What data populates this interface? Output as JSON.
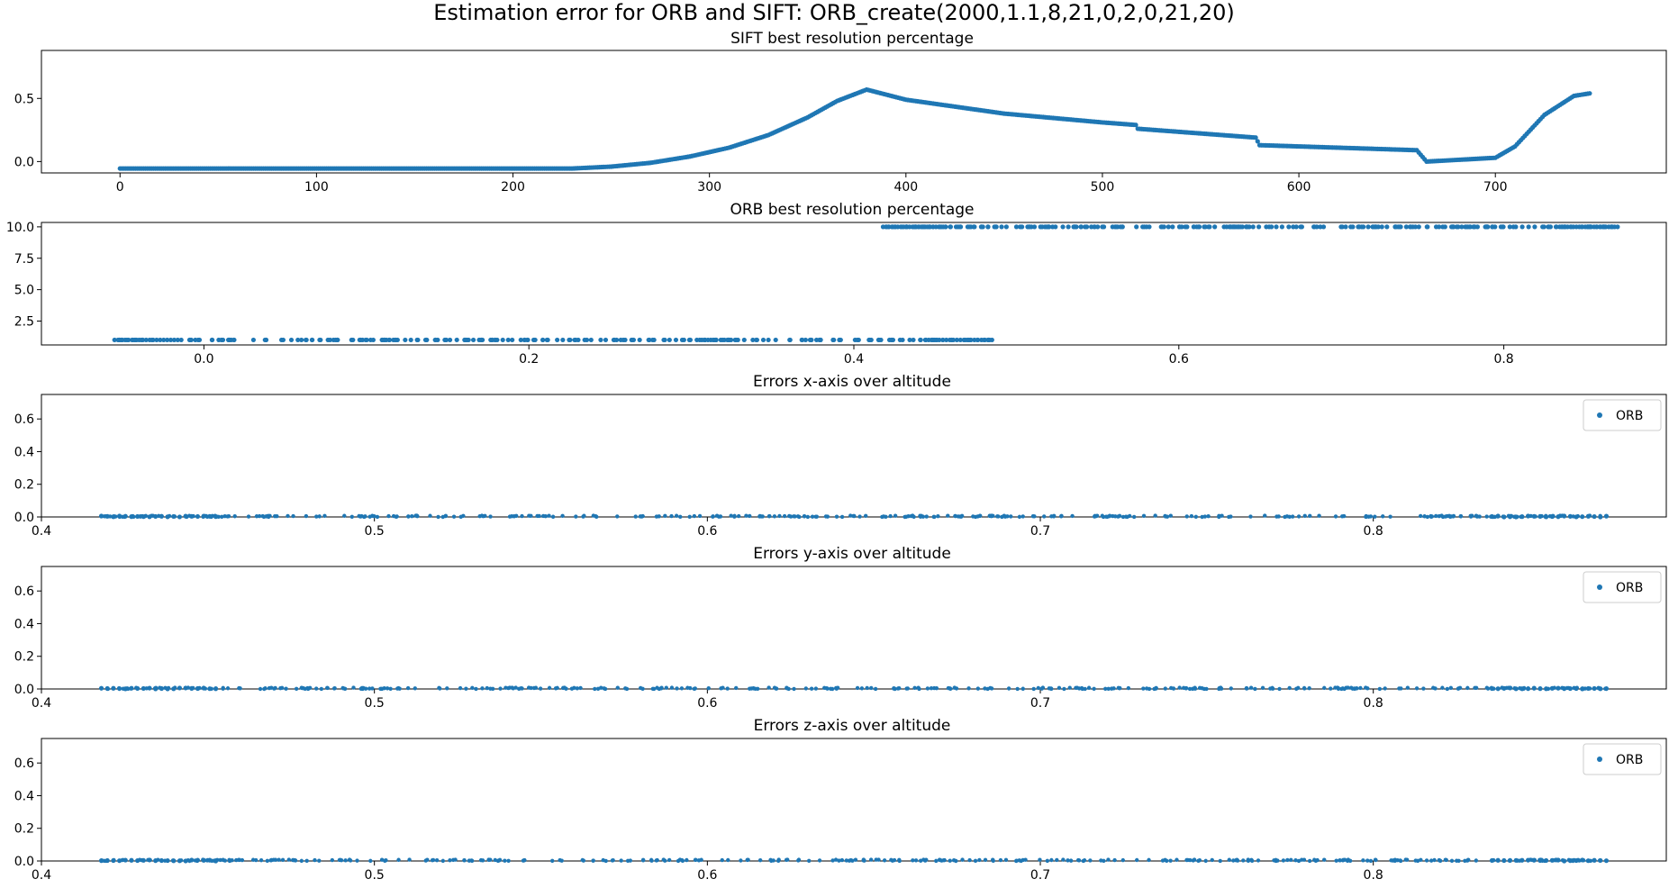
{
  "figure": {
    "title": "Estimation error for ORB and SIFT: ORB_create(2000,1.1,8,21,0,2,0,21,20)"
  },
  "colors": {
    "series": "#1f77b4",
    "axes": "#000000",
    "background": "#ffffff"
  },
  "chart_data": [
    {
      "type": "scatter",
      "title": "SIFT best resolution percentage",
      "xlim": [
        -40,
        787
      ],
      "ylim": [
        -0.09,
        0.88
      ],
      "xticks": [
        0,
        100,
        200,
        300,
        400,
        500,
        600,
        700
      ],
      "yticks": [
        0.0,
        0.5
      ],
      "ytick_labels": [
        "0.0",
        "0.5"
      ],
      "grid": false,
      "series": [
        {
          "curve": [
            [
              0,
              -0.055
            ],
            [
              230,
              -0.055
            ],
            [
              250,
              -0.04
            ],
            [
              270,
              -0.01
            ],
            [
              290,
              0.04
            ],
            [
              310,
              0.11
            ],
            [
              330,
              0.21
            ],
            [
              350,
              0.35
            ],
            [
              365,
              0.48
            ],
            [
              380,
              0.57
            ],
            [
              400,
              0.49
            ],
            [
              450,
              0.38
            ],
            [
              500,
              0.31
            ],
            [
              517,
              0.29
            ],
            [
              518,
              0.26
            ],
            [
              578,
              0.19
            ],
            [
              580,
              0.13
            ],
            [
              660,
              0.09
            ],
            [
              665,
              0.0
            ],
            [
              700,
              0.03
            ],
            [
              710,
              0.12
            ],
            [
              725,
              0.37
            ],
            [
              740,
              0.52
            ],
            [
              748,
              0.54
            ]
          ],
          "x_range": [
            0,
            748
          ]
        }
      ]
    },
    {
      "type": "scatter",
      "title": "ORB best resolution percentage",
      "xlim": [
        -0.1,
        0.9
      ],
      "ylim": [
        0.6,
        10.35
      ],
      "xticks": [
        0.0,
        0.2,
        0.4,
        0.6,
        0.8
      ],
      "xtick_labels": [
        "0.0",
        "0.2",
        "0.4",
        "0.6",
        "0.8"
      ],
      "yticks": [
        2.5,
        5.0,
        7.5,
        10.0
      ],
      "ytick_labels": [
        "2.5",
        "5.0",
        "7.5",
        "10.0"
      ],
      "grid": false,
      "series": [
        {
          "y_value": 1.0,
          "x_range": [
            -0.055,
            0.485
          ]
        },
        {
          "y_value": 10.0,
          "x_range": [
            0.418,
            0.87
          ]
        }
      ]
    },
    {
      "type": "scatter",
      "title": "Errors x-axis over altitude",
      "xlim": [
        0.4,
        0.888
      ],
      "ylim": [
        0.0,
        0.75
      ],
      "xticks": [
        0.4,
        0.5,
        0.6,
        0.7,
        0.8
      ],
      "xtick_labels": [
        "0.4",
        "0.5",
        "0.6",
        "0.7",
        "0.8"
      ],
      "yticks": [
        0.0,
        0.2,
        0.4,
        0.6
      ],
      "ytick_labels": [
        "0.0",
        "0.2",
        "0.4",
        "0.6"
      ],
      "grid": false,
      "legend": {
        "entries": [
          "ORB"
        ],
        "position": "upper-right"
      },
      "series": [
        {
          "name": "ORB",
          "y_value": 0.0,
          "x_range": [
            0.418,
            0.87
          ]
        }
      ]
    },
    {
      "type": "scatter",
      "title": "Errors y-axis over altitude",
      "xlim": [
        0.4,
        0.888
      ],
      "ylim": [
        0.0,
        0.75
      ],
      "xticks": [
        0.4,
        0.5,
        0.6,
        0.7,
        0.8
      ],
      "xtick_labels": [
        "0.4",
        "0.5",
        "0.6",
        "0.7",
        "0.8"
      ],
      "yticks": [
        0.0,
        0.2,
        0.4,
        0.6
      ],
      "ytick_labels": [
        "0.0",
        "0.2",
        "0.4",
        "0.6"
      ],
      "grid": false,
      "legend": {
        "entries": [
          "ORB"
        ],
        "position": "upper-right"
      },
      "series": [
        {
          "name": "ORB",
          "y_value": 0.0,
          "x_range": [
            0.418,
            0.87
          ]
        }
      ]
    },
    {
      "type": "scatter",
      "title": "Errors z-axis over altitude",
      "xlim": [
        0.4,
        0.888
      ],
      "ylim": [
        0.0,
        0.75
      ],
      "xticks": [
        0.4,
        0.5,
        0.6,
        0.7,
        0.8
      ],
      "xtick_labels": [
        "0.4",
        "0.5",
        "0.6",
        "0.7",
        "0.8"
      ],
      "yticks": [
        0.0,
        0.2,
        0.4,
        0.6
      ],
      "ytick_labels": [
        "0.0",
        "0.2",
        "0.4",
        "0.6"
      ],
      "grid": false,
      "legend": {
        "entries": [
          "ORB"
        ],
        "position": "upper-right"
      },
      "series": [
        {
          "name": "ORB",
          "y_value": 0.0,
          "x_range": [
            0.418,
            0.87
          ]
        }
      ]
    }
  ]
}
